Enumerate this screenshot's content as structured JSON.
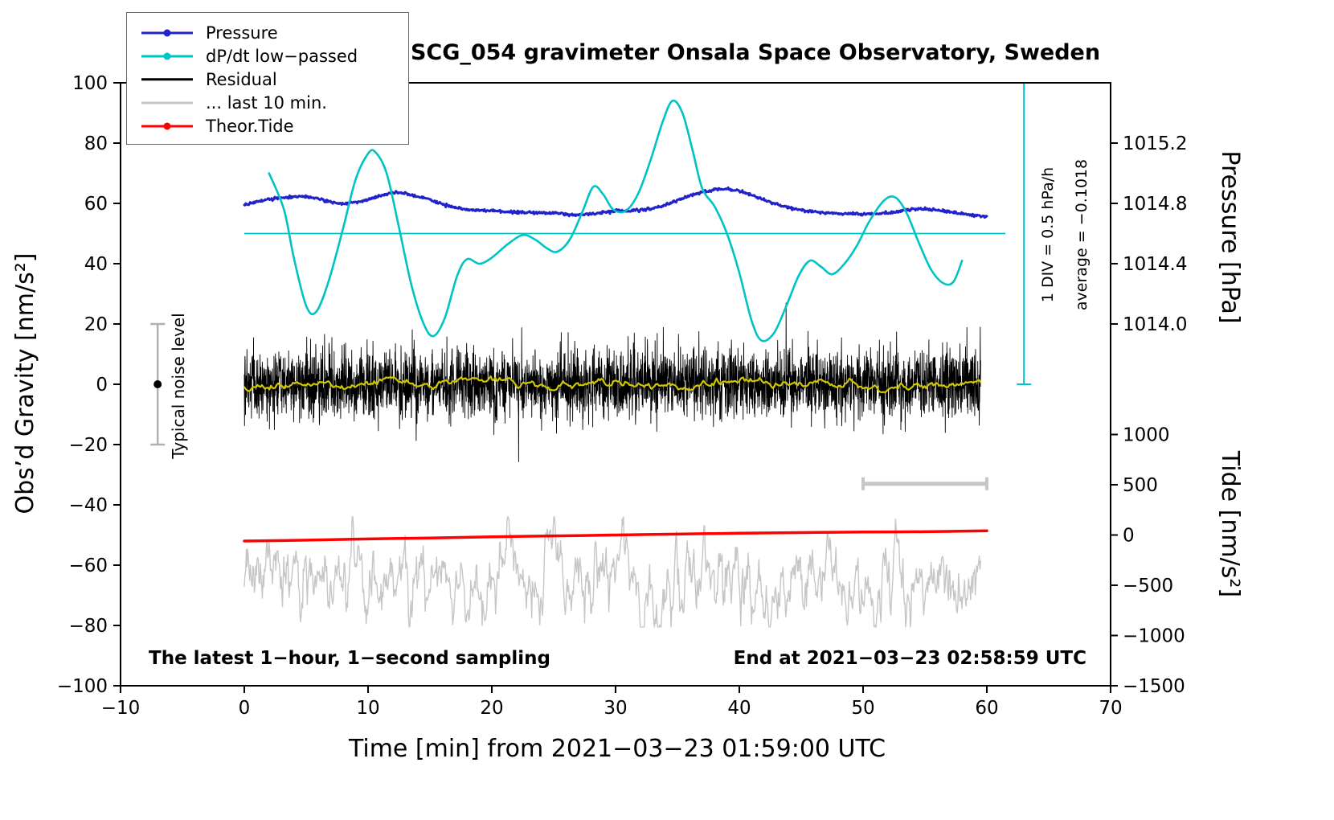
{
  "chart_data": {
    "type": "line",
    "title": "SCG_054 gravimeter Onsala Space Observatory, Sweden",
    "xlabel": "Time [min] from 2021−03−23 01:59:00 UTC",
    "ylabel_left": "Obs’d Gravity [nm/s²]",
    "ylabel_right_top": "Pressure [hPa]",
    "ylabel_right_bottom": "Tide [nm/s²]",
    "xlim": [
      -10,
      70
    ],
    "ylim_left": [
      -100,
      100
    ],
    "grid": false,
    "legend_position": "top-left",
    "x_ticks": [
      {
        "v": -10,
        "label": "−10"
      },
      {
        "v": 0,
        "label": "0"
      },
      {
        "v": 10,
        "label": "10"
      },
      {
        "v": 20,
        "label": "20"
      },
      {
        "v": 30,
        "label": "30"
      },
      {
        "v": 40,
        "label": "40"
      },
      {
        "v": 50,
        "label": "50"
      },
      {
        "v": 60,
        "label": "60"
      },
      {
        "v": 70,
        "label": "70"
      }
    ],
    "y_ticks_left": [
      {
        "v": 100,
        "label": "100"
      },
      {
        "v": 80,
        "label": "80"
      },
      {
        "v": 60,
        "label": "60"
      },
      {
        "v": 40,
        "label": "40"
      },
      {
        "v": 20,
        "label": "20"
      },
      {
        "v": 0,
        "label": "0"
      },
      {
        "v": -20,
        "label": "−20"
      },
      {
        "v": -40,
        "label": "−40"
      },
      {
        "v": -60,
        "label": "−60"
      },
      {
        "v": -80,
        "label": "−80"
      },
      {
        "v": -100,
        "label": "−100"
      }
    ],
    "y_ticks_pressure": [
      {
        "at": 80,
        "label": "1015.2"
      },
      {
        "at": 60,
        "label": "1014.8"
      },
      {
        "at": 40,
        "label": "1014.4"
      },
      {
        "at": 20,
        "label": "1014.0"
      }
    ],
    "y_ticks_tide": [
      {
        "at": -16.67,
        "label": "1000"
      },
      {
        "at": -33.33,
        "label": "500"
      },
      {
        "at": -50,
        "label": "0"
      },
      {
        "at": -66.67,
        "label": "−500"
      },
      {
        "at": -83.33,
        "label": "−1000"
      },
      {
        "at": -100,
        "label": "−1500"
      }
    ],
    "legend": [
      {
        "name": "Pressure",
        "color": "#2222cc",
        "marker": true
      },
      {
        "name": "dP/dt low−passed",
        "color": "#00c3c3",
        "marker": true
      },
      {
        "name": "Residual",
        "color": "#000000",
        "marker": false
      },
      {
        "name": "... last 10 min.",
        "color": "#c6c6c6",
        "marker": false
      },
      {
        "name": "Theor.Tide",
        "color": "#ff0000",
        "marker": true
      }
    ],
    "annotations": {
      "sampling": "The latest 1−hour, 1−second sampling",
      "end_time": "End at 2021−03−23 02:58:59 UTC",
      "noise_level": "Typical noise level",
      "div_scale": "1 DIV = 0.5 hPa/h",
      "average": "average = −0.1018"
    },
    "series": {
      "pressure": {
        "color": "#2222cc",
        "width": 3,
        "jitter": 0.22,
        "n": 1000,
        "points": [
          [
            0,
            59.5
          ],
          [
            1,
            60.5
          ],
          [
            2,
            61.3
          ],
          [
            3,
            61.8
          ],
          [
            4,
            62.2
          ],
          [
            5,
            62.3
          ],
          [
            6,
            61.5
          ],
          [
            7,
            60.5
          ],
          [
            8,
            60.0
          ],
          [
            9,
            60.3
          ],
          [
            10,
            61.2
          ],
          [
            11,
            62.5
          ],
          [
            12,
            63.6
          ],
          [
            13,
            63.3
          ],
          [
            14,
            62.3
          ],
          [
            15,
            61.3
          ],
          [
            16,
            59.8
          ],
          [
            17,
            58.6
          ],
          [
            18,
            58.0
          ],
          [
            19,
            57.7
          ],
          [
            20,
            57.6
          ],
          [
            21,
            57.3
          ],
          [
            22,
            57.1
          ],
          [
            23,
            57.0
          ],
          [
            24,
            57.0
          ],
          [
            25,
            56.8
          ],
          [
            26,
            56.4
          ],
          [
            27,
            56.2
          ],
          [
            28,
            56.4
          ],
          [
            29,
            57.0
          ],
          [
            30,
            57.5
          ],
          [
            31,
            57.6
          ],
          [
            32,
            57.8
          ],
          [
            33,
            58.3
          ],
          [
            34,
            59.5
          ],
          [
            35,
            61.0
          ],
          [
            36,
            62.5
          ],
          [
            37,
            63.8
          ],
          [
            38,
            64.6
          ],
          [
            39,
            64.8
          ],
          [
            40,
            64.2
          ],
          [
            41,
            62.8
          ],
          [
            42,
            61.2
          ],
          [
            43,
            59.8
          ],
          [
            44,
            58.6
          ],
          [
            45,
            57.8
          ],
          [
            46,
            57.2
          ],
          [
            47,
            56.8
          ],
          [
            48,
            56.6
          ],
          [
            49,
            56.6
          ],
          [
            50,
            56.5
          ],
          [
            51,
            56.5
          ],
          [
            52,
            56.8
          ],
          [
            53,
            57.5
          ],
          [
            54,
            58.0
          ],
          [
            55,
            58.2
          ],
          [
            56,
            57.8
          ],
          [
            57,
            57.2
          ],
          [
            58,
            56.6
          ],
          [
            59,
            56.0
          ],
          [
            60,
            55.6
          ]
        ]
      },
      "dpdt": {
        "color": "#00c3c3",
        "width": 2.6,
        "points": [
          [
            2,
            70
          ],
          [
            3.2,
            58
          ],
          [
            4,
            42
          ],
          [
            5,
            26
          ],
          [
            5.8,
            24
          ],
          [
            6.8,
            34
          ],
          [
            8,
            52
          ],
          [
            9,
            68
          ],
          [
            10,
            76.5
          ],
          [
            10.6,
            77
          ],
          [
            11.5,
            70
          ],
          [
            12.5,
            52
          ],
          [
            13.5,
            33
          ],
          [
            14.5,
            20
          ],
          [
            15.3,
            16
          ],
          [
            16.2,
            22
          ],
          [
            17.2,
            36
          ],
          [
            18,
            41.5
          ],
          [
            19,
            40
          ],
          [
            20,
            42
          ],
          [
            21.3,
            46.5
          ],
          [
            22.5,
            49.5
          ],
          [
            23.5,
            48
          ],
          [
            24.5,
            45
          ],
          [
            25.3,
            44
          ],
          [
            26.3,
            48
          ],
          [
            27.3,
            57
          ],
          [
            28.2,
            65.5
          ],
          [
            29,
            63
          ],
          [
            29.8,
            58
          ],
          [
            30.8,
            57.5
          ],
          [
            31.8,
            63
          ],
          [
            32.8,
            74
          ],
          [
            33.8,
            87
          ],
          [
            34.6,
            94
          ],
          [
            35.4,
            90
          ],
          [
            36.2,
            78
          ],
          [
            37,
            65
          ],
          [
            38,
            59
          ],
          [
            39,
            50
          ],
          [
            40,
            37
          ],
          [
            41,
            21
          ],
          [
            41.8,
            14.5
          ],
          [
            42.8,
            17
          ],
          [
            43.8,
            26
          ],
          [
            44.8,
            36
          ],
          [
            45.7,
            41
          ],
          [
            46.6,
            39
          ],
          [
            47.5,
            36.5
          ],
          [
            48.5,
            40
          ],
          [
            49.5,
            46
          ],
          [
            50.5,
            54
          ],
          [
            51.7,
            61
          ],
          [
            52.6,
            62
          ],
          [
            53.5,
            57
          ],
          [
            54.5,
            47
          ],
          [
            55.5,
            38
          ],
          [
            56.5,
            33.5
          ],
          [
            57.3,
            34
          ],
          [
            58,
            41
          ]
        ]
      },
      "dpdt_mean_line": {
        "color": "#00c3c3",
        "width": 1.8,
        "y": 50,
        "x0": 0,
        "x1": 61.5
      },
      "residual": {
        "color": "#000000",
        "width": 0.9,
        "n": 3600,
        "x0": 0,
        "x1": 59.5,
        "sigma": 5.5,
        "spike_prob": 0.012,
        "spike_scale": 1.9,
        "clampLo": -27,
        "clampHi": 27,
        "seed": 7
      },
      "residual_smooth": {
        "color": "#cfc800",
        "width": 2.2,
        "n": 500,
        "x0": 0,
        "x1": 59.5,
        "sigma": 0.45,
        "ar": 0.9,
        "base": 0,
        "clampLo": -3,
        "clampHi": 3,
        "seed": 21
      },
      "last10": {
        "color": "#c6c6c6",
        "width": 1.4,
        "n": 1100,
        "x0": 0,
        "x1": 59.5,
        "sigma": 4.0,
        "ar": 0.82,
        "base": -64.5,
        "clampLo": -80.5,
        "clampHi": -44,
        "seed": 99
      },
      "tide": {
        "color": "#ff0000",
        "width": 3.5,
        "points": [
          [
            0,
            -52.0
          ],
          [
            5,
            -51.7
          ],
          [
            10,
            -51.3
          ],
          [
            15,
            -51.0
          ],
          [
            20,
            -50.6
          ],
          [
            25,
            -50.3
          ],
          [
            30,
            -50.0
          ],
          [
            35,
            -49.7
          ],
          [
            40,
            -49.4
          ],
          [
            45,
            -49.2
          ],
          [
            50,
            -49.0
          ],
          [
            55,
            -48.9
          ],
          [
            60,
            -48.6
          ]
        ]
      },
      "noise_errorbar": {
        "color": "#b0b0b0",
        "dot_color": "#000000",
        "x": -7,
        "lo": -20,
        "hi": 20,
        "dot_y": 0
      },
      "scalebar": {
        "color": "#c6c6c6",
        "x0": 50,
        "x1": 60,
        "y": -33
      },
      "div_bar": {
        "color": "#00c3c3",
        "x": 63,
        "lo": 0,
        "hi": 100
      }
    }
  }
}
